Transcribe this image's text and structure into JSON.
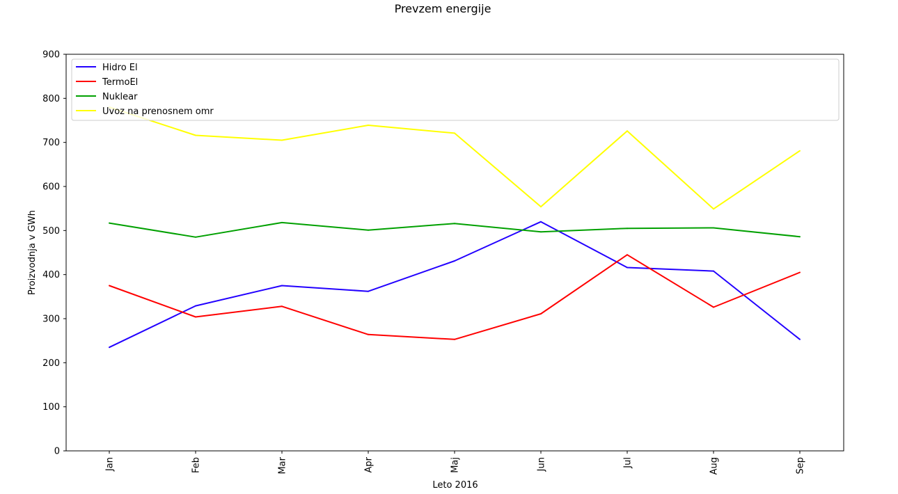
{
  "chart_data": {
    "type": "line",
    "title": "Prevzem energije",
    "xlabel": "Leto 2016",
    "ylabel": "Proizvodnja v GWh",
    "categories": [
      "Jan",
      "Feb",
      "Mar",
      "Apr",
      "Maj",
      "Jun",
      "Jul",
      "Aug",
      "Sep"
    ],
    "yticks": [
      "0",
      "100",
      "200",
      "300",
      "400",
      "500",
      "600",
      "700",
      "800",
      "900"
    ],
    "ylim": [
      0,
      900
    ],
    "grid": false,
    "legend_position": "top, full width",
    "series": [
      {
        "name": "Hidro El",
        "color": "#2200ff",
        "values": [
          235,
          329,
          375,
          362,
          431,
          520,
          416,
          408,
          253
        ]
      },
      {
        "name": "TermoEl",
        "color": "#ff0000",
        "values": [
          375,
          304,
          328,
          264,
          253,
          311,
          445,
          326,
          405
        ]
      },
      {
        "name": "Nuklear",
        "color": "#00a000",
        "values": [
          517,
          485,
          518,
          501,
          516,
          497,
          505,
          506,
          486
        ]
      },
      {
        "name": "Uvoz na prenosnem omr",
        "color": "#ffff00",
        "values": [
          780,
          716,
          705,
          739,
          721,
          554,
          726,
          549,
          681
        ]
      }
    ]
  }
}
